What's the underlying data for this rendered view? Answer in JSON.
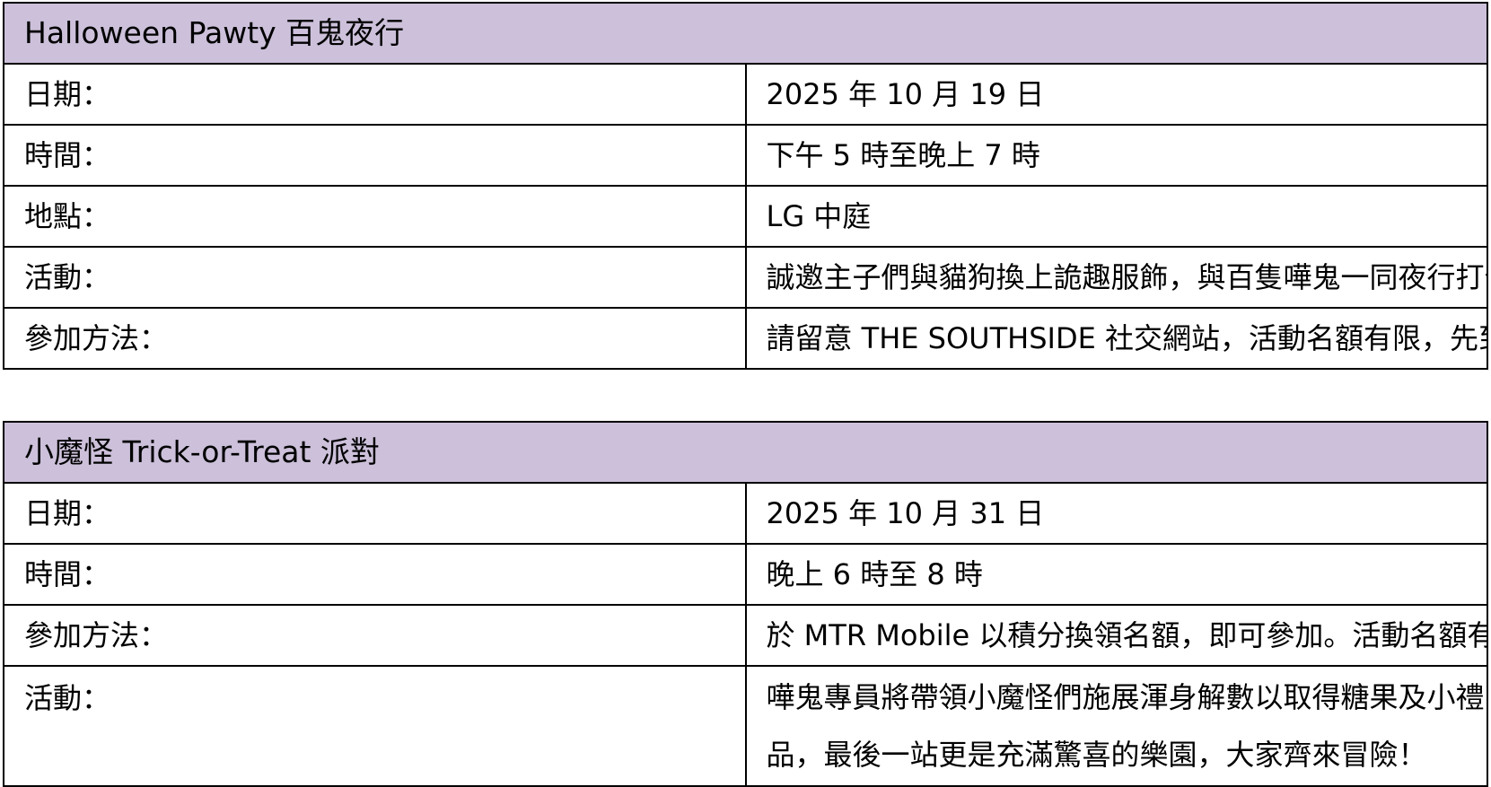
{
  "header_color": "#ccc0da",
  "events": [
    {
      "title": "Halloween Pawty 百鬼夜行",
      "rows": [
        {
          "label": "日期：",
          "value": "2025 年 10 月 19 日"
        },
        {
          "label": "時間：",
          "value": "下午 5 時至晚上 7 時"
        },
        {
          "label": "地點：",
          "value": "LG 中庭"
        },
        {
          "label": "活動：",
          "value": "誠邀主子們與貓狗換上詭趣服飾，與百隻嘩鬼一同夜行打卡！"
        },
        {
          "label": "參加方法：",
          "value": "請留意 THE SOUTHSIDE 社交網站，活動名額有限，先到先得。"
        }
      ]
    },
    {
      "title": "小魔怪 Trick-or-Treat 派對",
      "rows": [
        {
          "label": "日期：",
          "value": "2025 年 10 月 31 日"
        },
        {
          "label": "時間：",
          "value": "晚上 6 時至 8 時"
        },
        {
          "label": "參加方法：",
          "value": "於 MTR Mobile 以積分換領名額，即可參加。活動名額有限，先到先得。"
        },
        {
          "label": "活動：",
          "value": "嘩鬼專員將帶領小魔怪們施展渾身解數以取得糖果及小禮品，最後一站更是充滿驚喜的樂園，大家齊來冒險！"
        }
      ]
    }
  ]
}
